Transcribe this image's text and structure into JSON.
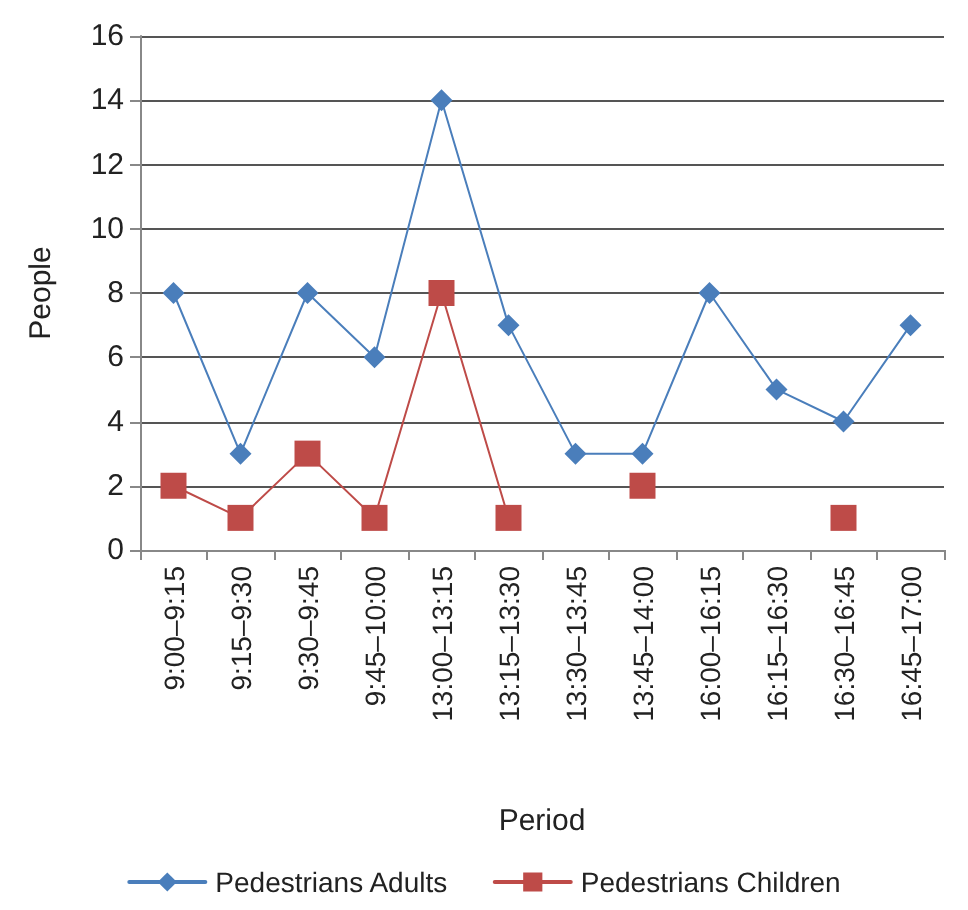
{
  "chart_data": {
    "type": "line",
    "xlabel": "Period",
    "ylabel": "People",
    "categories": [
      "9:00–9:15",
      "9:15–9:30",
      "9:30–9:45",
      "9:45–10:00",
      "13:00–13:15",
      "13:15–13:30",
      "13:30–13:45",
      "13:45–14:00",
      "16:00–16:15",
      "16:15–16:30",
      "16:30–16:45",
      "16:45–17:00"
    ],
    "series": [
      {
        "name": "Pedestrians Adults",
        "color": "#4a7ebb",
        "marker": "diamond",
        "values": [
          8,
          3,
          8,
          6,
          14,
          7,
          3,
          3,
          8,
          5,
          4,
          7
        ]
      },
      {
        "name": "Pedestrians Children",
        "color": "#be4b48",
        "marker": "square",
        "values": [
          2,
          1,
          3,
          1,
          8,
          1,
          null,
          2,
          null,
          null,
          1,
          null
        ]
      }
    ],
    "ylim": [
      0,
      16
    ],
    "yticks": [
      0,
      2,
      4,
      6,
      8,
      10,
      12,
      14,
      16
    ],
    "grid": "y",
    "legend": "bottom",
    "line_style": "solid"
  }
}
